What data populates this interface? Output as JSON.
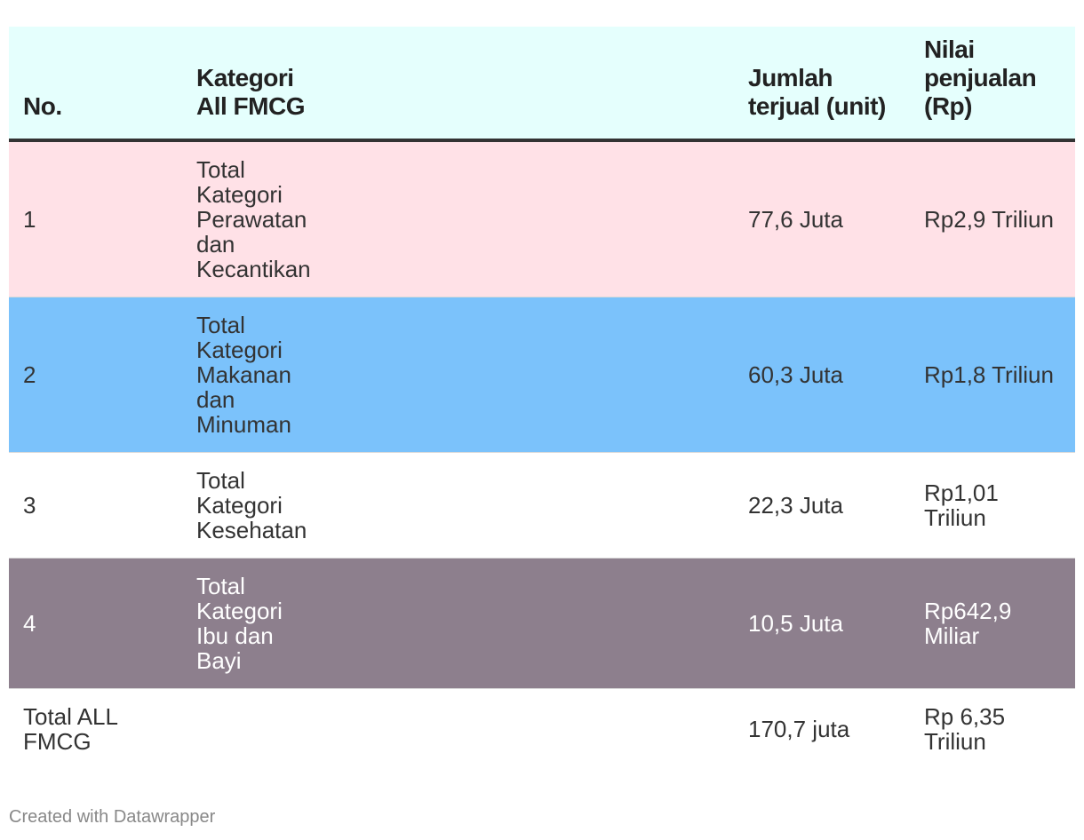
{
  "chart_data": {
    "type": "table",
    "columns": [
      "No.",
      "Kategori All FMCG",
      "Jumlah terjual (unit)",
      "Nilai penjualan (Rp)"
    ],
    "header_bg": "#e5fffd",
    "rows": [
      {
        "no": "1",
        "category": "Total Kategori Perawatan dan Kecantikan",
        "units": "77,6 Juta",
        "value": "Rp2,9 Triliun",
        "bg": "#ffe1e7",
        "color": "#333333"
      },
      {
        "no": "2",
        "category": "Total Kategori Makanan dan Minuman",
        "units": "60,3 Juta",
        "value": "Rp1,8 Triliun",
        "bg": "#7bc2fb",
        "color": "#333333"
      },
      {
        "no": "3",
        "category": "Total Kategori Kesehatan",
        "units": "22,3 Juta",
        "value": "Rp1,01 Triliun",
        "bg": "#ffffff",
        "color": "#333333"
      },
      {
        "no": "4",
        "category": "Total Kategori Ibu dan Bayi",
        "units": "10,5 Juta",
        "value": "Rp642,9 Miliar",
        "bg": "#8d7f8d",
        "color": "#ffffff"
      }
    ],
    "total": {
      "no": "Total ALL FMCG",
      "category": "",
      "units": "170,7 juta",
      "value": "Rp 6,35 Triliun",
      "bg": "#ffffff",
      "color": "#333333"
    }
  },
  "footer": {
    "credit": "Created with Datawrapper"
  }
}
